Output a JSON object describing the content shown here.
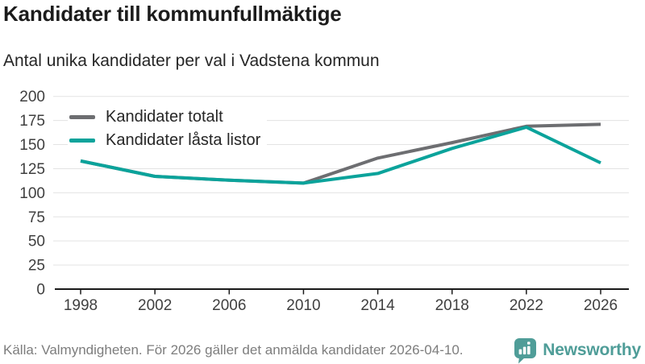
{
  "header": {
    "title": "Kandidater till kommunfullmäktige",
    "subtitle": "Antal unika kandidater per val i Vadstena kommun"
  },
  "legend": {
    "items": [
      {
        "label": "Kandidater totalt",
        "color": "#6d6e71"
      },
      {
        "label": "Kandidater låsta listor",
        "color": "#0ba39b"
      }
    ]
  },
  "footer": {
    "source": "Källa: Valmyndigheten. För 2026 gäller det anmälda kandidater 2026-04-10.",
    "brand": "Newsworthy",
    "brand_color": "#4f9d98"
  },
  "chart_data": {
    "type": "line",
    "title": "Kandidater till kommunfullmäktige",
    "subtitle": "Antal unika kandidater per val i Vadstena kommun",
    "x": [
      1998,
      2002,
      2006,
      2010,
      2014,
      2018,
      2022,
      2026
    ],
    "series": [
      {
        "name": "Kandidater totalt",
        "color": "#6d6e71",
        "values": [
          133,
          117,
          113,
          110,
          136,
          152,
          169,
          171
        ]
      },
      {
        "name": "Kandidater låsta listor",
        "color": "#0ba39b",
        "values": [
          133,
          117,
          113,
          110,
          120,
          146,
          168,
          131
        ]
      }
    ],
    "ylim": [
      0,
      200
    ],
    "yticks": [
      0,
      25,
      50,
      75,
      100,
      125,
      150,
      175,
      200
    ],
    "xlabel": "",
    "ylabel": "",
    "grid": true,
    "legend_position": "top-left",
    "colors": {
      "grid": "#e3e3e3",
      "axis": "#1a1a1a",
      "tick_label": "#3f3f3f"
    }
  }
}
